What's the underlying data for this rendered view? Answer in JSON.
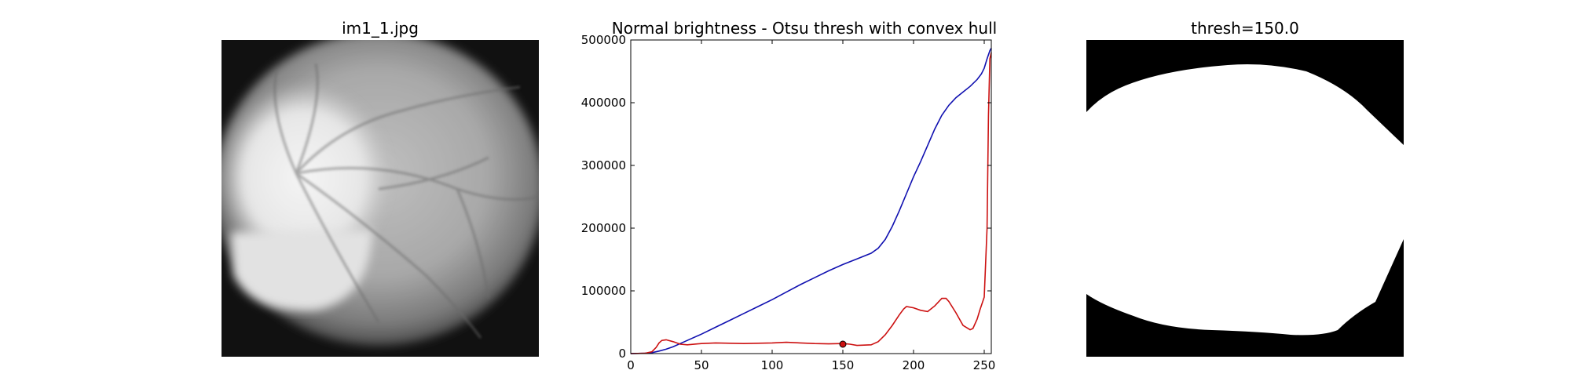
{
  "panels": {
    "left": {
      "title": "im1_1.jpg"
    },
    "middle": {
      "title": "Normal brightness - Otsu thresh with convex hull"
    },
    "right": {
      "title": "thresh=150.0"
    }
  },
  "chart_data": {
    "type": "line",
    "title": "Normal brightness - Otsu thresh with convex hull",
    "xlabel": "",
    "ylabel": "",
    "xlim": [
      0,
      255
    ],
    "ylim": [
      0,
      500000
    ],
    "xticks": [
      0,
      50,
      100,
      150,
      200,
      250
    ],
    "xtick_labels": [
      "0",
      "50",
      "100",
      "150",
      "200",
      "250"
    ],
    "yticks": [
      0,
      100000,
      200000,
      300000,
      400000,
      500000
    ],
    "ytick_labels": [
      "0",
      "100000",
      "200000",
      "300000",
      "400000",
      "500000"
    ],
    "grid": false,
    "series": [
      {
        "color": "#1010b0",
        "x": [
          0,
          10,
          15,
          20,
          25,
          30,
          40,
          50,
          60,
          70,
          80,
          90,
          100,
          110,
          120,
          130,
          140,
          150,
          160,
          170,
          175,
          180,
          185,
          190,
          195,
          200,
          205,
          210,
          215,
          220,
          225,
          230,
          235,
          240,
          245,
          248,
          250,
          252,
          254,
          255
        ],
        "y": [
          0,
          500,
          1500,
          4000,
          7000,
          11000,
          21000,
          31000,
          42000,
          53000,
          64000,
          75000,
          86000,
          98000,
          110000,
          121000,
          132000,
          142000,
          151000,
          160000,
          168000,
          182000,
          203000,
          228000,
          255000,
          282000,
          306000,
          332000,
          358000,
          380000,
          396000,
          408000,
          417000,
          426000,
          437000,
          446000,
          455000,
          470000,
          483000,
          487000
        ]
      },
      {
        "color": "#cc1111",
        "x": [
          0,
          10,
          15,
          18,
          20,
          22,
          25,
          30,
          35,
          40,
          50,
          60,
          70,
          80,
          90,
          100,
          110,
          120,
          130,
          140,
          150,
          155,
          160,
          170,
          175,
          180,
          185,
          190,
          193,
          195,
          200,
          205,
          210,
          215,
          220,
          223,
          225,
          230,
          235,
          240,
          242,
          245,
          247,
          250,
          252,
          253,
          254,
          255
        ],
        "y": [
          0,
          500,
          3000,
          10000,
          17000,
          21000,
          22000,
          19000,
          15000,
          14000,
          16000,
          17000,
          16500,
          16000,
          16500,
          17000,
          18000,
          17000,
          16000,
          15500,
          16000,
          15000,
          13000,
          14000,
          19000,
          30000,
          45000,
          62000,
          71000,
          75000,
          73000,
          69000,
          67000,
          76000,
          88000,
          88000,
          83000,
          65000,
          45000,
          38000,
          40000,
          55000,
          70000,
          90000,
          200000,
          380000,
          470000,
          480000
        ]
      }
    ],
    "marker": {
      "x": 150,
      "y": 15000,
      "color": "#cc1111"
    }
  },
  "images": {
    "fundus": {
      "description": ""
    },
    "mask": {
      "description": ""
    }
  }
}
